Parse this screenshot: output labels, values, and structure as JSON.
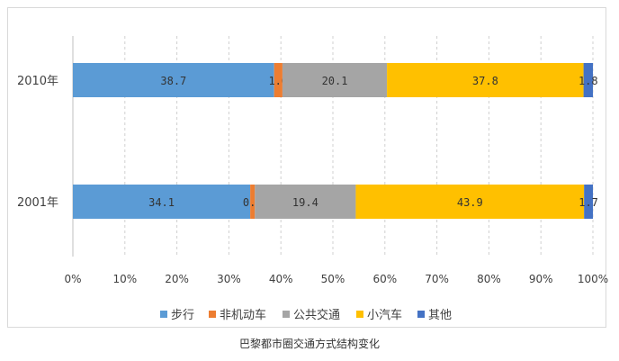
{
  "chart_data": {
    "type": "bar",
    "orientation": "horizontal",
    "stacked": true,
    "categories": [
      "2010年",
      "2001年"
    ],
    "series": [
      {
        "name": "步行",
        "color": "#5b9bd5",
        "values": [
          38.7,
          34.1
        ],
        "labels": [
          "38.7",
          "34.1"
        ]
      },
      {
        "name": "非机动车",
        "color": "#ed7d31",
        "values": [
          1.6,
          0.9
        ],
        "labels": [
          "1.6",
          "0.9"
        ]
      },
      {
        "name": "公共交通",
        "color": "#a5a5a5",
        "values": [
          20.1,
          19.4
        ],
        "labels": [
          "20.1",
          "19.4"
        ]
      },
      {
        "name": "小汽车",
        "color": "#ffc000",
        "values": [
          37.8,
          43.9
        ],
        "labels": [
          "37.8",
          "43.9"
        ]
      },
      {
        "name": "其他",
        "color": "#4472c4",
        "values": [
          1.8,
          1.7
        ],
        "labels": [
          "1.8",
          "1.7"
        ]
      }
    ],
    "x_ticks": [
      "0%",
      "10%",
      "20%",
      "30%",
      "40%",
      "50%",
      "60%",
      "70%",
      "80%",
      "90%",
      "100%"
    ],
    "xlim": [
      0,
      100
    ],
    "grid": "vertical dashed",
    "legend": "bottom"
  },
  "caption": "巴黎都市圈交通方式结构变化"
}
